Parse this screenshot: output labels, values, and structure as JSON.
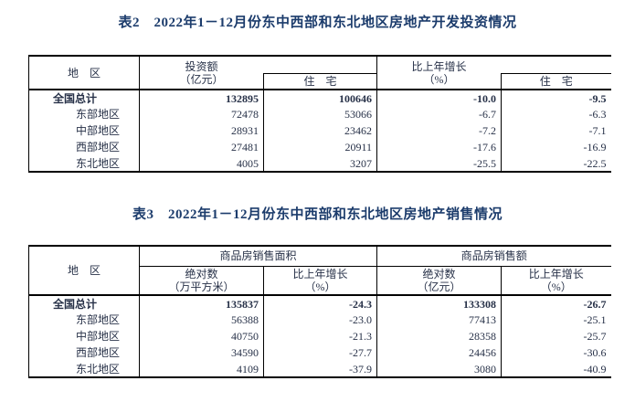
{
  "page": {
    "background": "#ffffff",
    "title_color": "#1c3c6c",
    "text_color": "#273148",
    "border_color": "#000000"
  },
  "table2": {
    "title": "表2　2022年1－12月份东中西部和东北地区房地产开发投资情况",
    "header": {
      "region": "地　区",
      "investment_line1": "投资额",
      "investment_line2": "（亿元）",
      "residential": "住　宅",
      "growth_line1": "比上年增长",
      "growth_line2": "（%）",
      "growth_residential": "住　宅"
    },
    "rows": [
      {
        "region": "全国总计",
        "investment": "132895",
        "residential": "100646",
        "growth": "-10.0",
        "growth_residential": "-9.5"
      },
      {
        "region": "东部地区",
        "investment": "72478",
        "residential": "53066",
        "growth": "-6.7",
        "growth_residential": "-6.3"
      },
      {
        "region": "中部地区",
        "investment": "28931",
        "residential": "23462",
        "growth": "-7.2",
        "growth_residential": "-7.1"
      },
      {
        "region": "西部地区",
        "investment": "27481",
        "residential": "20911",
        "growth": "-17.6",
        "growth_residential": "-16.9"
      },
      {
        "region": "东北地区",
        "investment": "4005",
        "residential": "3207",
        "growth": "-25.5",
        "growth_residential": "-22.5"
      }
    ]
  },
  "table3": {
    "title": "表3　2022年1－12月份东中西部和东北地区房地产销售情况",
    "header": {
      "region": "地　区",
      "group_area": "商品房销售面积",
      "group_amount": "商品房销售额",
      "abs_line1": "绝对数",
      "area_unit_line2": "（万平方米）",
      "growth_line1": "比上年增长",
      "growth_line2": "（%）",
      "amount_unit_line2": "（亿元）"
    },
    "rows": [
      {
        "region": "全国总计",
        "area": "135837",
        "area_growth": "-24.3",
        "amount": "133308",
        "amount_growth": "-26.7"
      },
      {
        "region": "东部地区",
        "area": "56388",
        "area_growth": "-23.0",
        "amount": "77413",
        "amount_growth": "-25.1"
      },
      {
        "region": "中部地区",
        "area": "40750",
        "area_growth": "-21.3",
        "amount": "28358",
        "amount_growth": "-25.7"
      },
      {
        "region": "西部地区",
        "area": "34590",
        "area_growth": "-27.7",
        "amount": "24456",
        "amount_growth": "-30.6"
      },
      {
        "region": "东北地区",
        "area": "4109",
        "area_growth": "-37.9",
        "amount": "3080",
        "amount_growth": "-40.9"
      }
    ]
  }
}
